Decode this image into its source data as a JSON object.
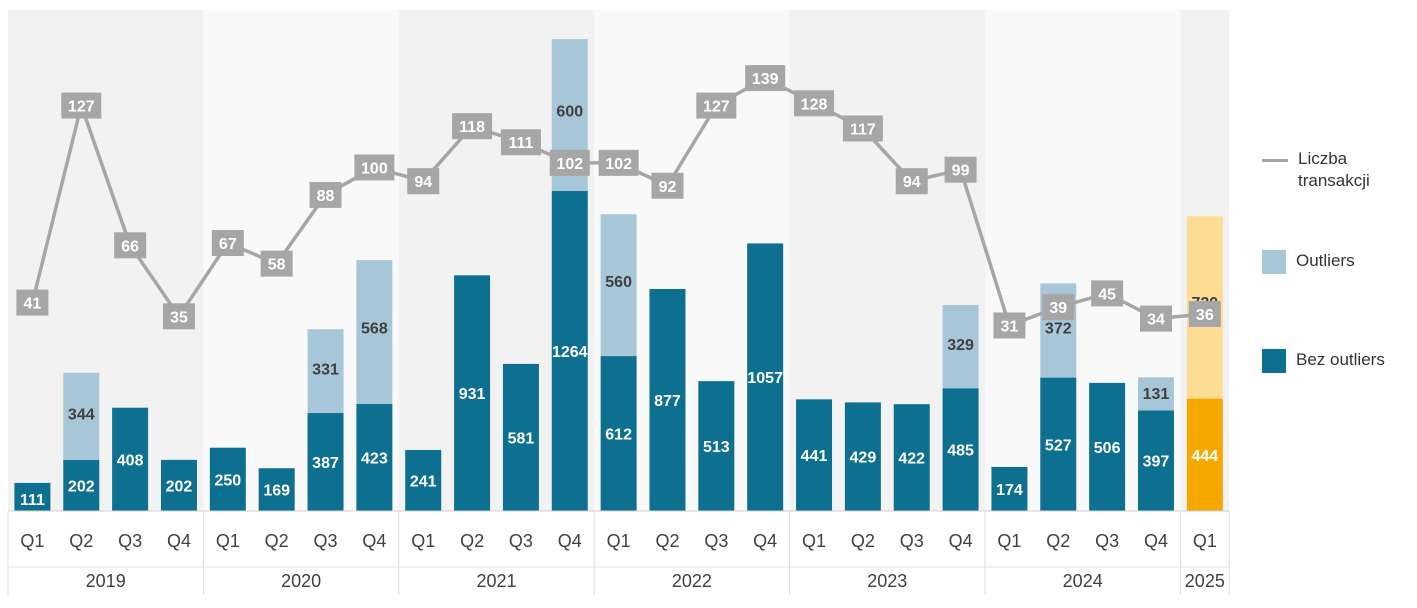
{
  "chart_data": {
    "type": "bar",
    "stacked": true,
    "categories": [
      "Q1",
      "Q2",
      "Q3",
      "Q4",
      "Q1",
      "Q2",
      "Q3",
      "Q4",
      "Q1",
      "Q2",
      "Q3",
      "Q4",
      "Q1",
      "Q2",
      "Q3",
      "Q4",
      "Q1",
      "Q2",
      "Q3",
      "Q4",
      "Q1",
      "Q2",
      "Q3",
      "Q4",
      "Q1"
    ],
    "years": [
      {
        "label": "2019",
        "start": 0,
        "count": 4
      },
      {
        "label": "2020",
        "start": 4,
        "count": 4
      },
      {
        "label": "2021",
        "start": 8,
        "count": 4
      },
      {
        "label": "2022",
        "start": 12,
        "count": 4
      },
      {
        "label": "2023",
        "start": 16,
        "count": 4
      },
      {
        "label": "2024",
        "start": 20,
        "count": 4
      },
      {
        "label": "2025",
        "start": 24,
        "count": 1
      }
    ],
    "series": [
      {
        "name": "Bez outliers",
        "kind": "bar",
        "color": "#0e7090",
        "highlight_color": "#f5a800",
        "values": [
          111,
          202,
          408,
          202,
          250,
          169,
          387,
          423,
          241,
          931,
          581,
          1264,
          612,
          877,
          513,
          1057,
          441,
          429,
          422,
          485,
          174,
          527,
          506,
          397,
          444
        ]
      },
      {
        "name": "Outliers",
        "kind": "bar",
        "color": "#a7c7d9",
        "highlight_color": "#fddc94",
        "values": [
          0,
          344,
          0,
          0,
          0,
          0,
          331,
          568,
          0,
          0,
          0,
          600,
          560,
          0,
          0,
          0,
          0,
          0,
          0,
          329,
          0,
          372,
          0,
          131,
          720
        ]
      },
      {
        "name": "Liczba transakcji",
        "kind": "line",
        "color": "#a6a6a6",
        "values": [
          41,
          127,
          66,
          35,
          67,
          58,
          88,
          100,
          94,
          118,
          111,
          102,
          102,
          92,
          127,
          139,
          128,
          117,
          94,
          99,
          31,
          39,
          45,
          34,
          36
        ]
      }
    ],
    "highlight_index": 24,
    "bar_ylim": [
      0,
      1900
    ],
    "line_ylim": [
      -50,
      160
    ],
    "legend_position": "right",
    "grid": false
  },
  "legend": {
    "line_label": "Liczba transakcji",
    "outliers_label": "Outliers",
    "base_label": "Bez outliers",
    "line_color": "#a6a6a6",
    "outliers_color": "#a7c7d9",
    "base_color": "#0e7090"
  }
}
